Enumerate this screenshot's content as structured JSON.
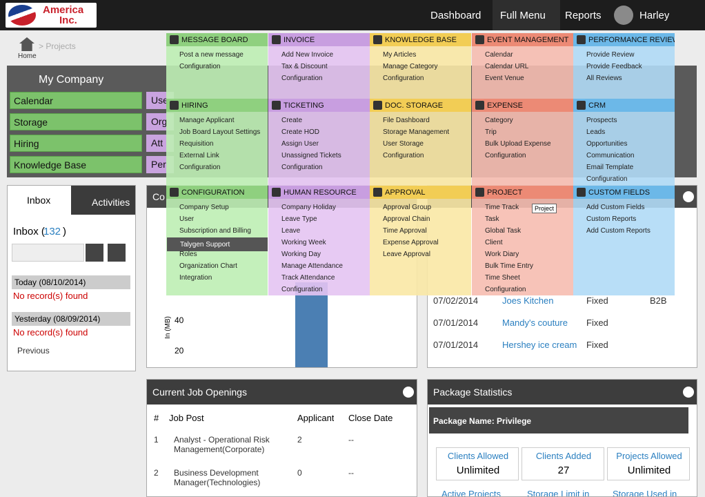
{
  "nav": {
    "logo_line1": "America",
    "logo_line2": "Inc.",
    "items": [
      "Dashboard",
      "Full Menu",
      "Reports"
    ],
    "user": "Harley"
  },
  "breadcrumb": {
    "home": "Home",
    "current": "> Projects"
  },
  "my_company": {
    "title": "My Company",
    "tiles_left": [
      "Calendar",
      "Storage",
      "Hiring",
      "Knowledge Base"
    ],
    "tiles_right": [
      "Use",
      "Org",
      "Att",
      "Per"
    ]
  },
  "inbox": {
    "tabs": [
      "Inbox",
      "Activities"
    ],
    "heading_prefix": "Inbox (",
    "count": 132,
    "heading_suffix": ")",
    "groups": [
      {
        "date": "Today (08/10/2014)",
        "message": "No record(s) found"
      },
      {
        "date": "Yesterday (08/09/2014)",
        "message": "No record(s) found"
      }
    ],
    "previous": "Previous"
  },
  "storage_chart": {
    "title": "Co",
    "y_axis_label": "In (MB)",
    "yticks": [
      40,
      20
    ]
  },
  "projects": {
    "rows": [
      [
        "07/02/2014",
        "Joes Kitchen",
        "Fixed",
        "B2B"
      ],
      [
        "07/01/2014",
        "Mandy's couture",
        "Fixed"
      ],
      [
        "07/01/2014",
        "Hershey ice cream",
        "Fixed"
      ]
    ]
  },
  "job_openings": {
    "title": "Current Job Openings",
    "headers": [
      "#",
      "Job Post",
      "Applicant",
      "Close Date"
    ],
    "rows": [
      [
        1,
        "Analyst - Operational Risk Management(Corporate)",
        2,
        "--"
      ],
      [
        2,
        "Business Development Manager(Technologies)",
        0,
        "--"
      ]
    ]
  },
  "package_stats": {
    "title": "Package Statistics",
    "package_name": "Package Name: Privilege",
    "stats": [
      {
        "label": "Clients Allowed",
        "value": "Unlimited"
      },
      {
        "label": "Clients Added",
        "value": 27
      },
      {
        "label": "Projects Allowed",
        "value": "Unlimited"
      }
    ],
    "more_labels": [
      "Active Projects",
      "Storage Limit in",
      "Storage Used in"
    ]
  },
  "menu": {
    "tooltip": "Project",
    "sections": [
      {
        "title": "MESSAGE BOARD",
        "items": [
          "Post a new message",
          "Configuration"
        ]
      },
      {
        "title": "INVOICE",
        "items": [
          "Add New Invoice",
          "Tax & Discount",
          "Configuration"
        ]
      },
      {
        "title": "KNOWLEDGE BASE",
        "items": [
          "My Articles",
          "Manage Category",
          "Configuration"
        ]
      },
      {
        "title": "EVENT MANAGEMENT",
        "items": [
          "Calendar",
          "Calendar URL",
          "Event Venue"
        ]
      },
      {
        "title": "PERFORMANCE REVIEW",
        "items": [
          "Provide Review",
          "Provide Feedback",
          "All Reviews"
        ]
      },
      {
        "title": "HIRING",
        "items": [
          "Manage Applicant",
          "Job Board Layout Settings",
          "Requisition",
          "External Link",
          "Configuration"
        ]
      },
      {
        "title": "TICKETING",
        "items": [
          "Create",
          "Create HOD",
          "Assign User",
          "Unassigned Tickets",
          "Configuration"
        ]
      },
      {
        "title": "DOC. STORAGE",
        "items": [
          "File Dashboard",
          "Storage Management",
          "User Storage",
          "Configuration"
        ]
      },
      {
        "title": "EXPENSE",
        "items": [
          "Category",
          "Trip",
          "Bulk Upload Expense",
          "Configuration"
        ]
      },
      {
        "title": "CRM",
        "items": [
          "Prospects",
          "Leads",
          "Opportunities",
          "Communication",
          "Email Template",
          "Configuration"
        ]
      },
      {
        "title": "CONFIGURATION",
        "items": [
          "Company Setup",
          "User",
          "Subscription and Billing",
          "Talygen Support",
          "Roles",
          "Organization Chart",
          "Integration"
        ]
      },
      {
        "title": "HUMAN RESOURCE",
        "items": [
          "Company Holiday",
          "Leave Type",
          "Leave",
          "Working Week",
          "Working Day",
          "Manage Attendance",
          "Track Attendance",
          "Configuration"
        ]
      },
      {
        "title": "APPROVAL",
        "items": [
          "Approval Group",
          "Approval Chain",
          "Time Approval",
          "Expense Approval",
          "Leave Approval"
        ]
      },
      {
        "title": "PROJECT",
        "items": [
          "Time Track",
          "Task",
          "Global Task",
          "Client",
          "Work Diary",
          "Bulk Time Entry",
          "Time Sheet",
          "Configuration"
        ]
      },
      {
        "title": "CUSTOM FIELDS",
        "items": [
          "Add Custom Fields",
          "Custom Reports",
          "Add Custom Reports"
        ]
      }
    ]
  }
}
